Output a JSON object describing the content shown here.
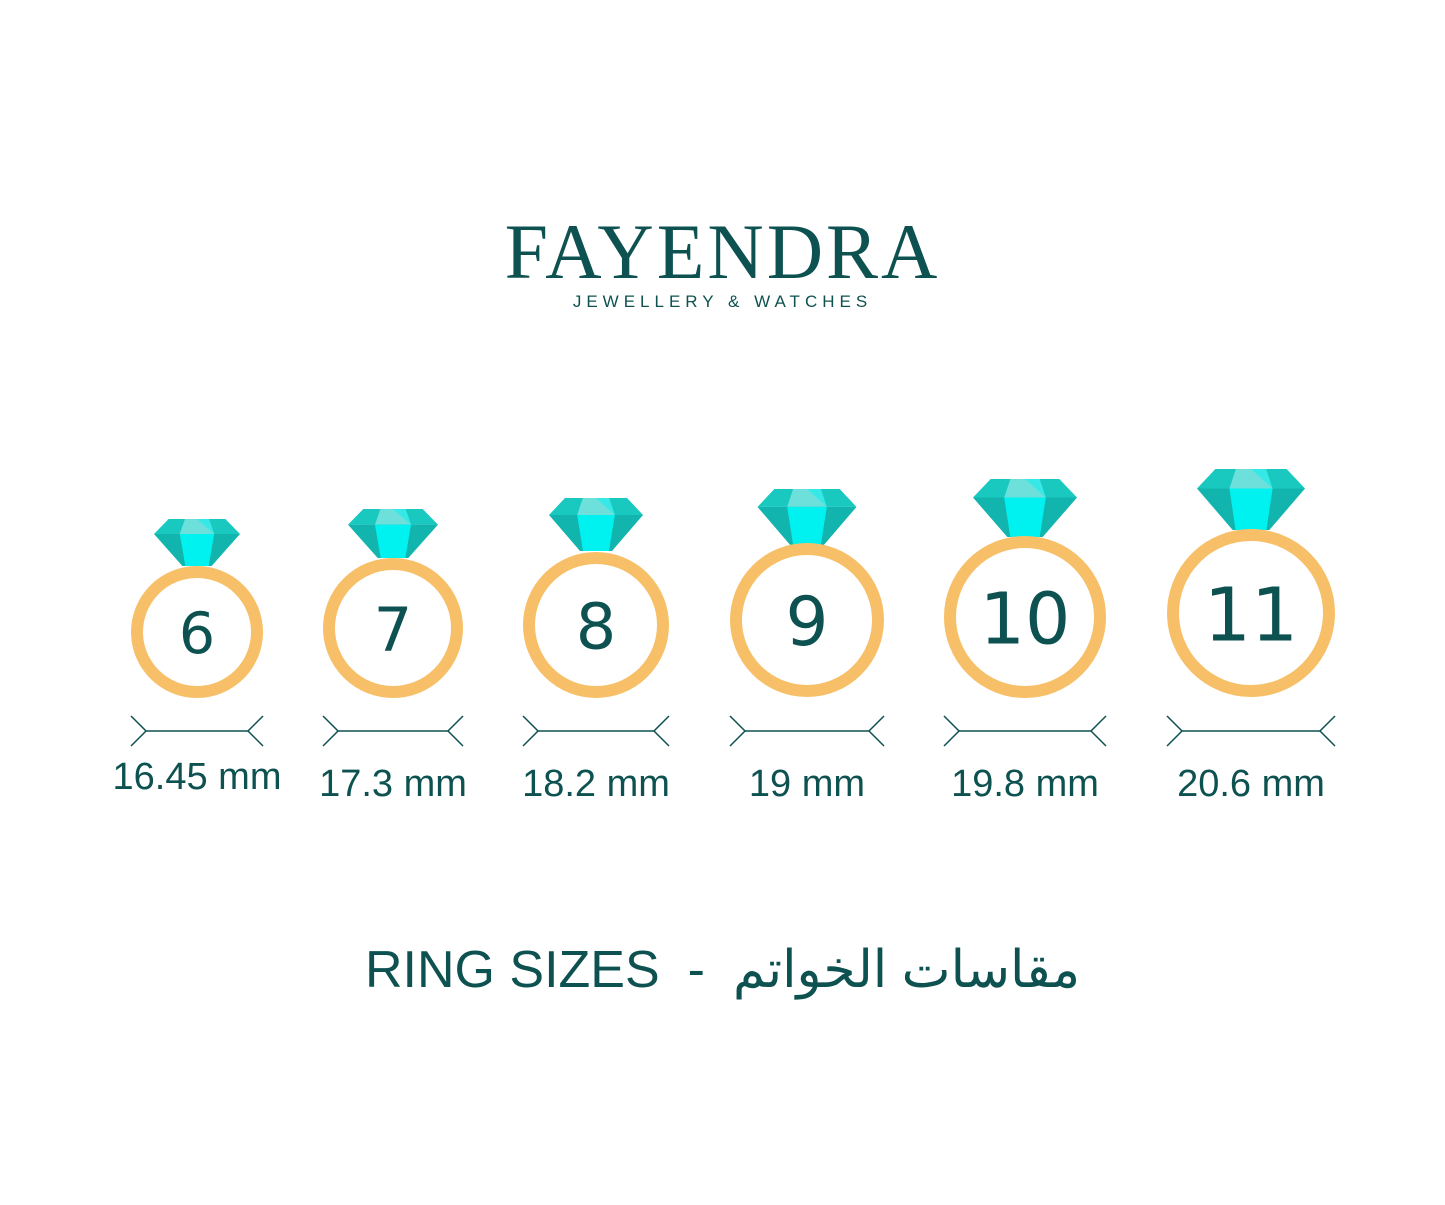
{
  "brand": {
    "name": "FAYENDRA",
    "tagline": "JEWELLERY & WATCHES"
  },
  "colors": {
    "text": "#0d5250",
    "ring": "#f7c068",
    "gem_light": "#6de0dc",
    "gem_mid": "#19c9c0",
    "gem_bright": "#00f2f0",
    "gem_dark": "#12b5ad"
  },
  "rings": [
    {
      "size": "6",
      "diameter": "16.45 mm"
    },
    {
      "size": "7",
      "diameter": "17.3 mm"
    },
    {
      "size": "8",
      "diameter": "18.2 mm"
    },
    {
      "size": "9",
      "diameter": "19 mm"
    },
    {
      "size": "10",
      "diameter": "19.8 mm"
    },
    {
      "size": "11",
      "diameter": "20.6 mm"
    }
  ],
  "footer": {
    "title_en": "RING SIZES",
    "separator": "-",
    "title_ar": "مقاسات الخواتم"
  }
}
